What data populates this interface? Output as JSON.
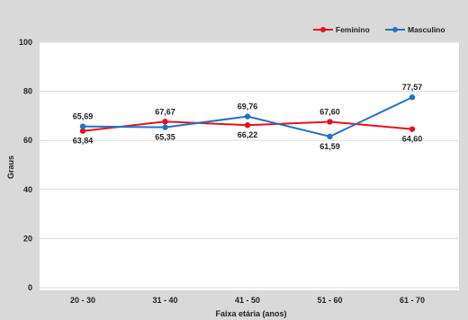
{
  "chart_data": {
    "type": "line",
    "title": "",
    "xlabel": "Faixa etária (anos)",
    "ylabel": "Graus",
    "categories": [
      "20 - 30",
      "31 - 40",
      "41 - 50",
      "51 - 60",
      "61 - 70"
    ],
    "series": [
      {
        "name": "Feminino",
        "color": "#e8101a",
        "values": [
          63.84,
          67.67,
          66.22,
          67.6,
          64.6
        ],
        "labels": [
          "63,84",
          "67,67",
          "66,22",
          "67,60",
          "64,60"
        ]
      },
      {
        "name": "Masculino",
        "color": "#1f73c4",
        "values": [
          65.69,
          65.35,
          69.76,
          61.59,
          77.57
        ],
        "labels": [
          "65,69",
          "65,35",
          "69,76",
          "61,59",
          "77,57"
        ]
      }
    ],
    "ylim": [
      0,
      100
    ],
    "yticks": [
      0,
      20,
      40,
      60,
      80,
      100
    ],
    "grid": true,
    "legend": "top-right",
    "marker": "circle"
  }
}
